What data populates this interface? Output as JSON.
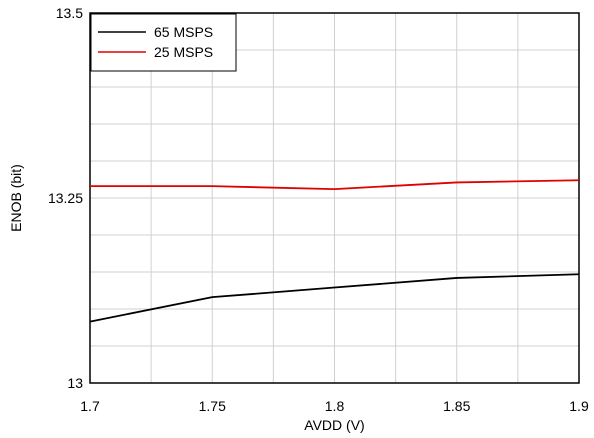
{
  "chart_data": {
    "type": "line",
    "title": "",
    "xlabel": "AVDD (V)",
    "ylabel": "ENOB (bit)",
    "xlim": [
      1.7,
      1.9
    ],
    "ylim": [
      13.0,
      13.5
    ],
    "x_ticks": [
      "1.7",
      "1.75",
      "1.8",
      "1.85",
      "1.9"
    ],
    "y_ticks": [
      "13",
      "13.25",
      "13.5"
    ],
    "grid": true,
    "legend_position": "top-left",
    "series": [
      {
        "name": "65 MSPS",
        "color": "#000000",
        "x": [
          1.7,
          1.75,
          1.8,
          1.85,
          1.9
        ],
        "y": [
          13.083,
          13.116,
          13.129,
          13.142,
          13.147
        ]
      },
      {
        "name": "25 MSPS",
        "color": "#e00000",
        "x": [
          1.7,
          1.75,
          1.8,
          1.85,
          1.9
        ],
        "y": [
          13.266,
          13.266,
          13.262,
          13.271,
          13.274
        ]
      }
    ]
  }
}
